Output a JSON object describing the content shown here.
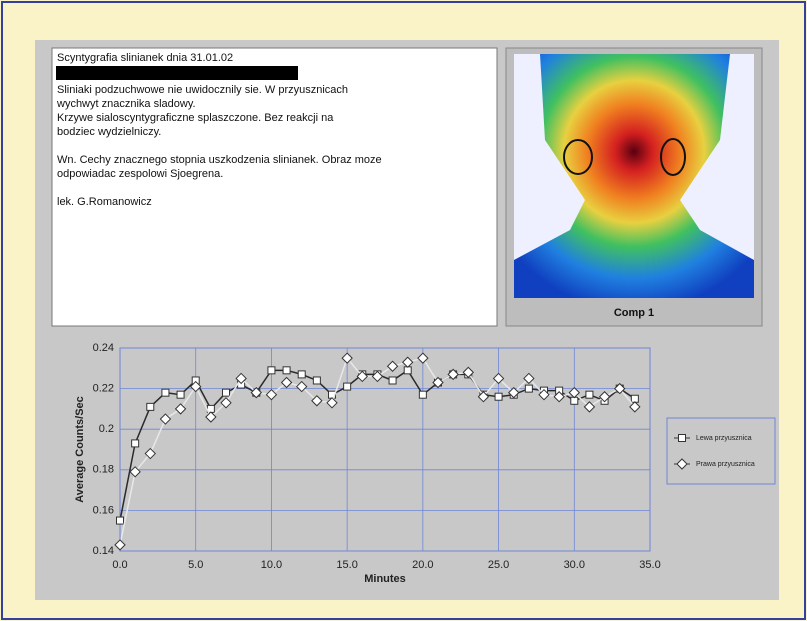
{
  "report": {
    "title": "Scyntygrafia slinianek  dnia  31.01.02",
    "paragraphs": [
      [
        "Sliniaki podzuchwowe nie uwidocznily sie. W przyusznicach",
        "wychwyt znacznika sladowy.",
        "Krzywe sialoscyntygraficzne splaszczone. Bez reakcji na",
        "bodziec wydzielniczy."
      ],
      [
        "Wn. Cechy znacznego stopnia uszkodzenia slinianek. Obraz moze",
        "odpowiadac zespolowi Sjoegrena."
      ],
      [
        "lek.  G.Romanowicz"
      ]
    ]
  },
  "image_caption": "Comp 1",
  "chart_data": {
    "type": "line",
    "x_label": "Minutes",
    "y_label": "Average Counts/Sec",
    "x": [
      0,
      1,
      2,
      3,
      4,
      5,
      6,
      7,
      8,
      9,
      10,
      11,
      12,
      13,
      14,
      15,
      16,
      17,
      18,
      19,
      20,
      21,
      22,
      23,
      24,
      25,
      26,
      27,
      28,
      29,
      30,
      31,
      32,
      33,
      34
    ],
    "series": [
      {
        "name": "Lewa przyusznica",
        "color": "#2a2a2a",
        "marker": "square",
        "values": [
          0.155,
          0.193,
          0.211,
          0.218,
          0.217,
          0.224,
          0.21,
          0.218,
          0.222,
          0.218,
          0.229,
          0.229,
          0.227,
          0.224,
          0.217,
          0.221,
          0.227,
          0.227,
          0.224,
          0.229,
          0.217,
          0.223,
          0.227,
          0.227,
          0.217,
          0.216,
          0.217,
          0.22,
          0.219,
          0.219,
          0.214,
          0.217,
          0.214,
          0.22,
          0.215
        ]
      },
      {
        "name": "Prawa przyusznica",
        "color": "#e8e8e8",
        "marker": "diamond",
        "values": [
          0.143,
          0.179,
          0.188,
          0.205,
          0.21,
          0.221,
          0.206,
          0.213,
          0.225,
          0.218,
          0.217,
          0.223,
          0.221,
          0.214,
          0.213,
          0.235,
          0.226,
          0.226,
          0.231,
          0.233,
          0.235,
          0.223,
          0.227,
          0.228,
          0.216,
          0.225,
          0.218,
          0.225,
          0.217,
          0.216,
          0.218,
          0.211,
          0.216,
          0.22,
          0.211
        ]
      }
    ],
    "xlim": [
      0,
      35
    ],
    "ylim": [
      0.14,
      0.24
    ],
    "xticks": [
      {
        "value": 0,
        "label": "0.0"
      },
      {
        "value": 5,
        "label": "5.0"
      },
      {
        "value": 10,
        "label": "10.0"
      },
      {
        "value": 15,
        "label": "15.0"
      },
      {
        "value": 20,
        "label": "20.0"
      },
      {
        "value": 25,
        "label": "25.0"
      },
      {
        "value": 30,
        "label": "30.0"
      },
      {
        "value": 35,
        "label": "35.0"
      }
    ],
    "yticks": [
      0.14,
      0.16,
      0.18,
      0.2,
      0.22,
      0.24
    ],
    "grid": true,
    "grid_color": "#6f86d8",
    "legend": "right"
  }
}
